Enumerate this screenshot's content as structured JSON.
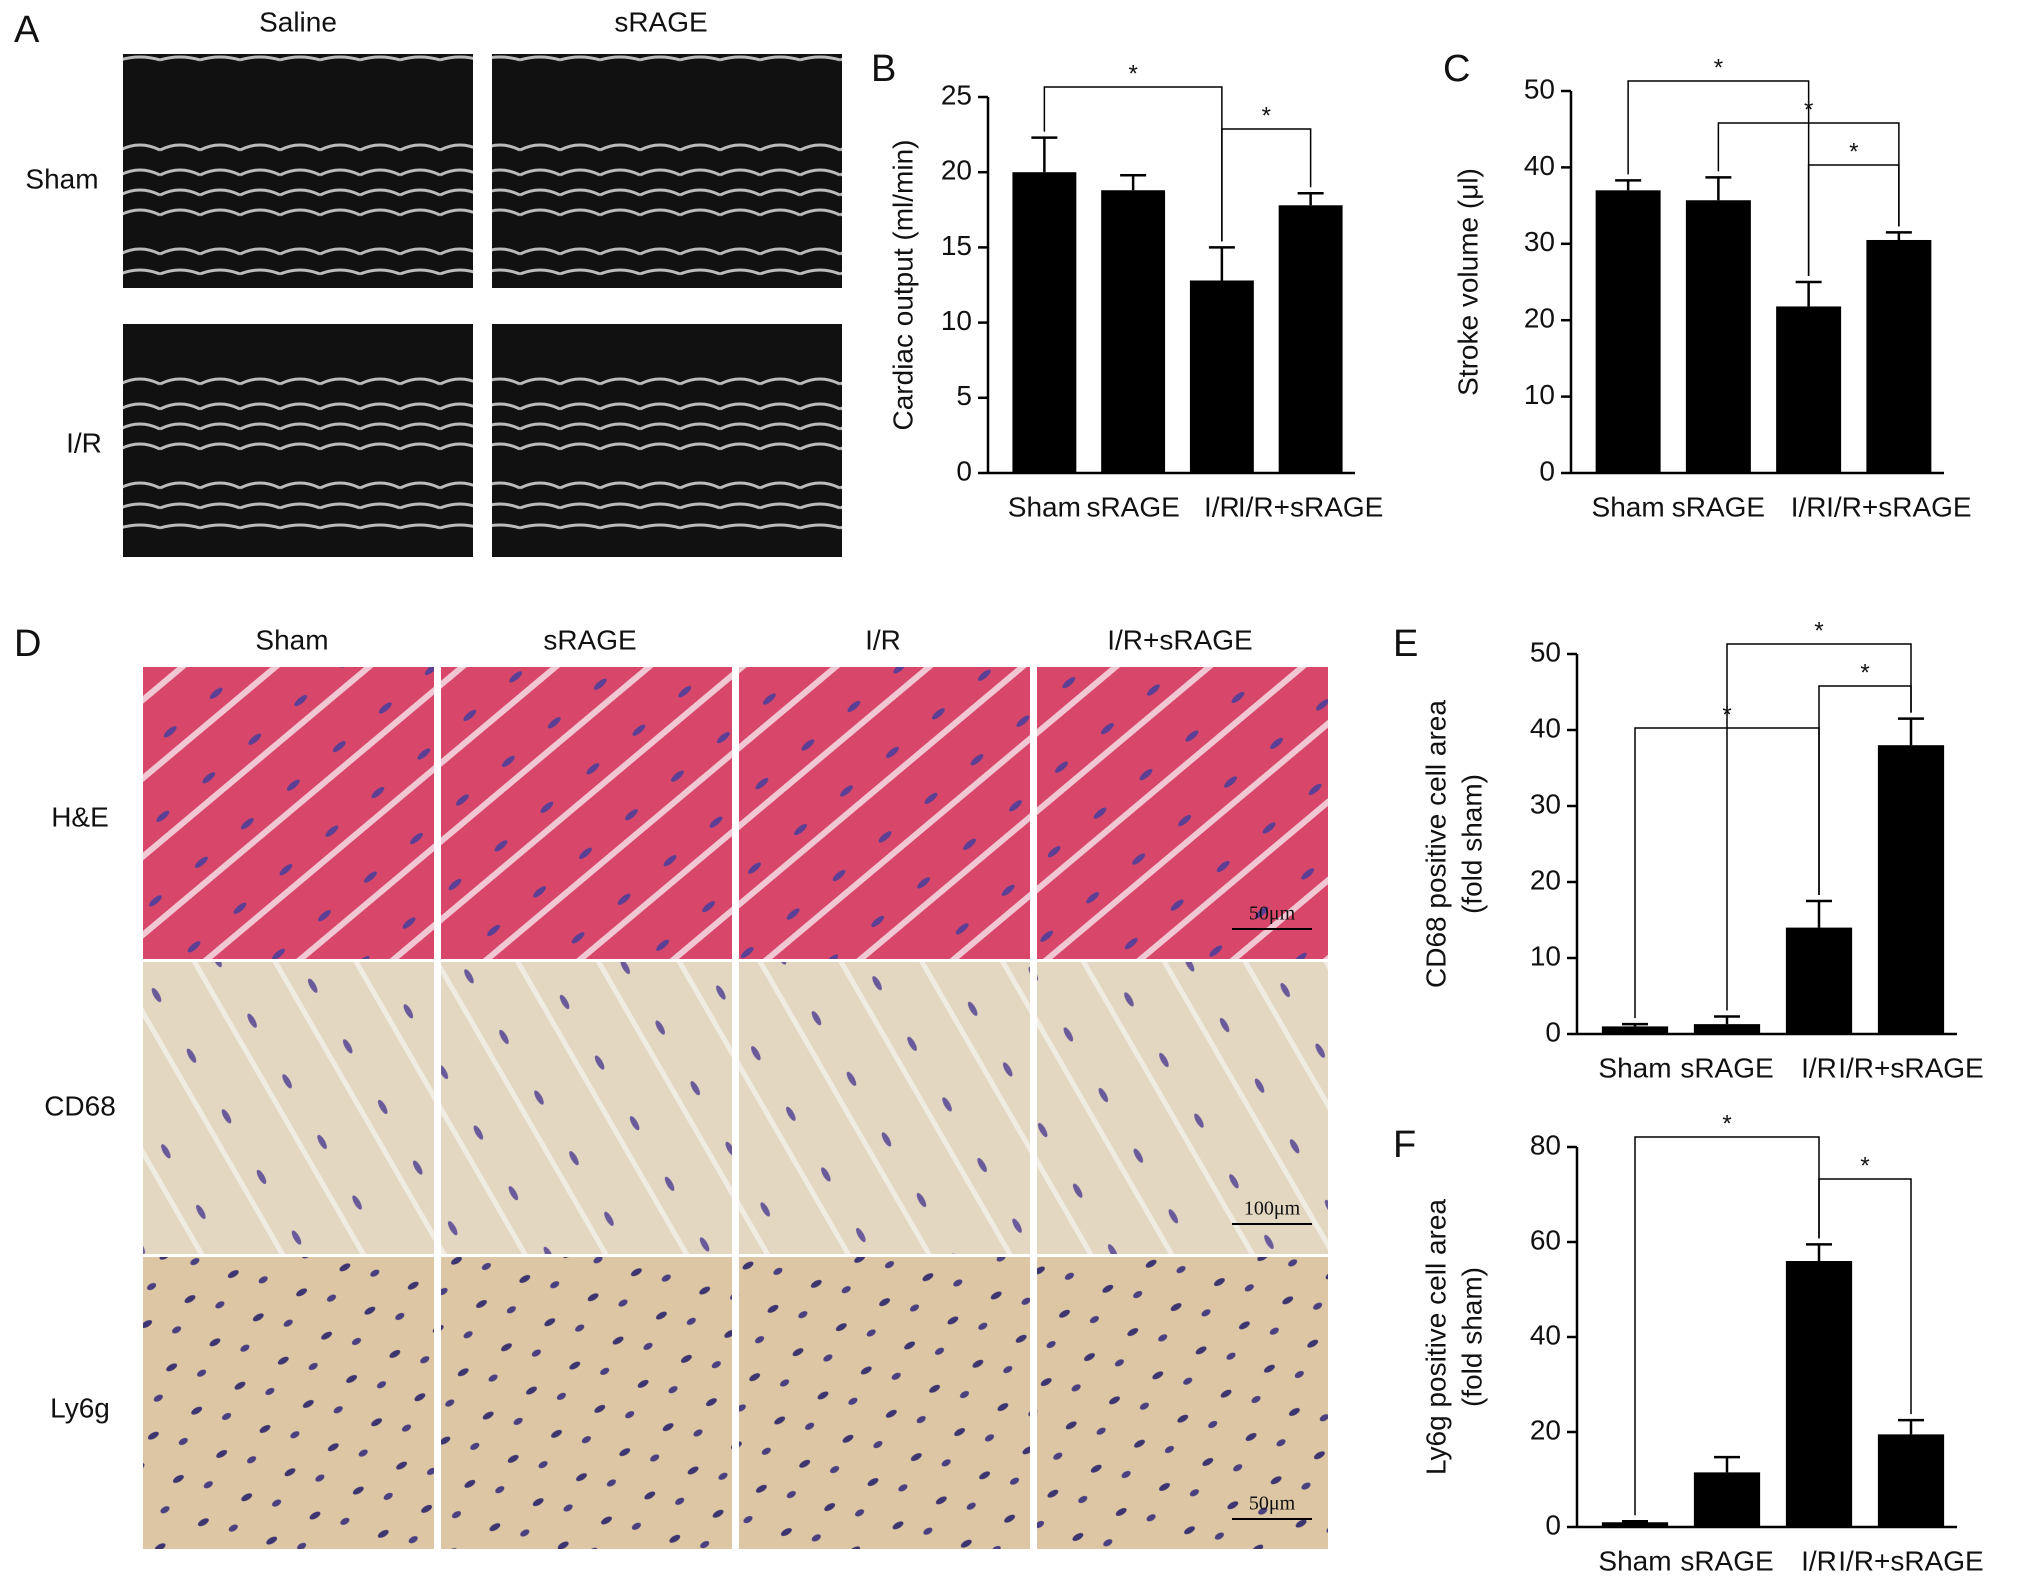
{
  "panels": {
    "A": {
      "label": "A",
      "columns": [
        "Saline",
        "sRAGE"
      ],
      "rows": [
        "Sham",
        "I/R"
      ]
    },
    "D": {
      "label": "D",
      "columns": [
        "Sham",
        "sRAGE",
        "I/R",
        "I/R+sRAGE"
      ],
      "rows": [
        "H&E",
        "CD68",
        "Ly6g"
      ],
      "scale_bars": [
        "50μm",
        "100μm",
        "50μm"
      ]
    }
  },
  "chart_data": [
    {
      "type": "bar",
      "label": "B",
      "ylabel": [
        "Cardiac output (ml/min)"
      ],
      "categories": [
        "Sham",
        "sRAGE",
        "I/R",
        "I/R+sRAGE"
      ],
      "values": [
        20.0,
        18.8,
        12.8,
        17.8
      ],
      "errors": [
        2.3,
        1.0,
        2.2,
        0.8
      ],
      "color": "#000000",
      "ylim": [
        0,
        25
      ],
      "yticks": [
        0,
        5,
        10,
        15,
        20,
        25
      ],
      "significance": [
        {
          "groups": [
            "Sham",
            "I/R"
          ],
          "label": "*"
        },
        {
          "groups": [
            "I/R",
            "I/R+sRAGE"
          ],
          "label": "*"
        }
      ]
    },
    {
      "type": "bar",
      "label": "C",
      "ylabel": [
        "Stroke volume (μl)"
      ],
      "categories": [
        "Sham",
        "sRAGE",
        "I/R",
        "I/R+sRAGE"
      ],
      "values": [
        37.0,
        35.7,
        21.8,
        30.5
      ],
      "errors": [
        1.3,
        3.0,
        3.2,
        1.0
      ],
      "color": "#000000",
      "ylim": [
        0,
        50
      ],
      "yticks": [
        0,
        10,
        20,
        30,
        40,
        50
      ],
      "significance": [
        {
          "groups": [
            "Sham",
            "I/R"
          ],
          "label": "*"
        },
        {
          "groups": [
            "sRAGE",
            "I/R+sRAGE"
          ],
          "label": "*"
        },
        {
          "groups": [
            "I/R",
            "I/R+sRAGE"
          ],
          "label": "*"
        }
      ]
    },
    {
      "type": "bar",
      "label": "E",
      "ylabel": [
        "CD68 positive cell area",
        "(fold sham)"
      ],
      "categories": [
        "Sham",
        "sRAGE",
        "I/R",
        "I/R+sRAGE"
      ],
      "values": [
        1.0,
        1.3,
        14.0,
        38.0
      ],
      "errors": [
        0.3,
        1.0,
        3.5,
        3.5
      ],
      "color": "#000000",
      "ylim": [
        0,
        50
      ],
      "yticks": [
        0,
        10,
        20,
        30,
        40,
        50
      ],
      "significance": [
        {
          "groups": [
            "sRAGE",
            "I/R+sRAGE"
          ],
          "label": "*"
        },
        {
          "groups": [
            "I/R",
            "I/R+sRAGE"
          ],
          "label": "*"
        },
        {
          "groups": [
            "Sham",
            "I/R"
          ],
          "label": "*"
        }
      ]
    },
    {
      "type": "bar",
      "label": "F",
      "ylabel": [
        "Ly6g positive cell area",
        "(fold sham)"
      ],
      "categories": [
        "Sham",
        "sRAGE",
        "I/R",
        "I/R+sRAGE"
      ],
      "values": [
        1.0,
        11.5,
        56.0,
        19.5
      ],
      "errors": [
        0.2,
        3.2,
        3.5,
        3.0
      ],
      "color": "#000000",
      "ylim": [
        0,
        80
      ],
      "yticks": [
        0,
        20,
        40,
        60,
        80
      ],
      "significance": [
        {
          "groups": [
            "Sham",
            "I/R"
          ],
          "label": "*"
        },
        {
          "groups": [
            "I/R",
            "I/R+sRAGE"
          ],
          "label": "*"
        }
      ]
    }
  ]
}
